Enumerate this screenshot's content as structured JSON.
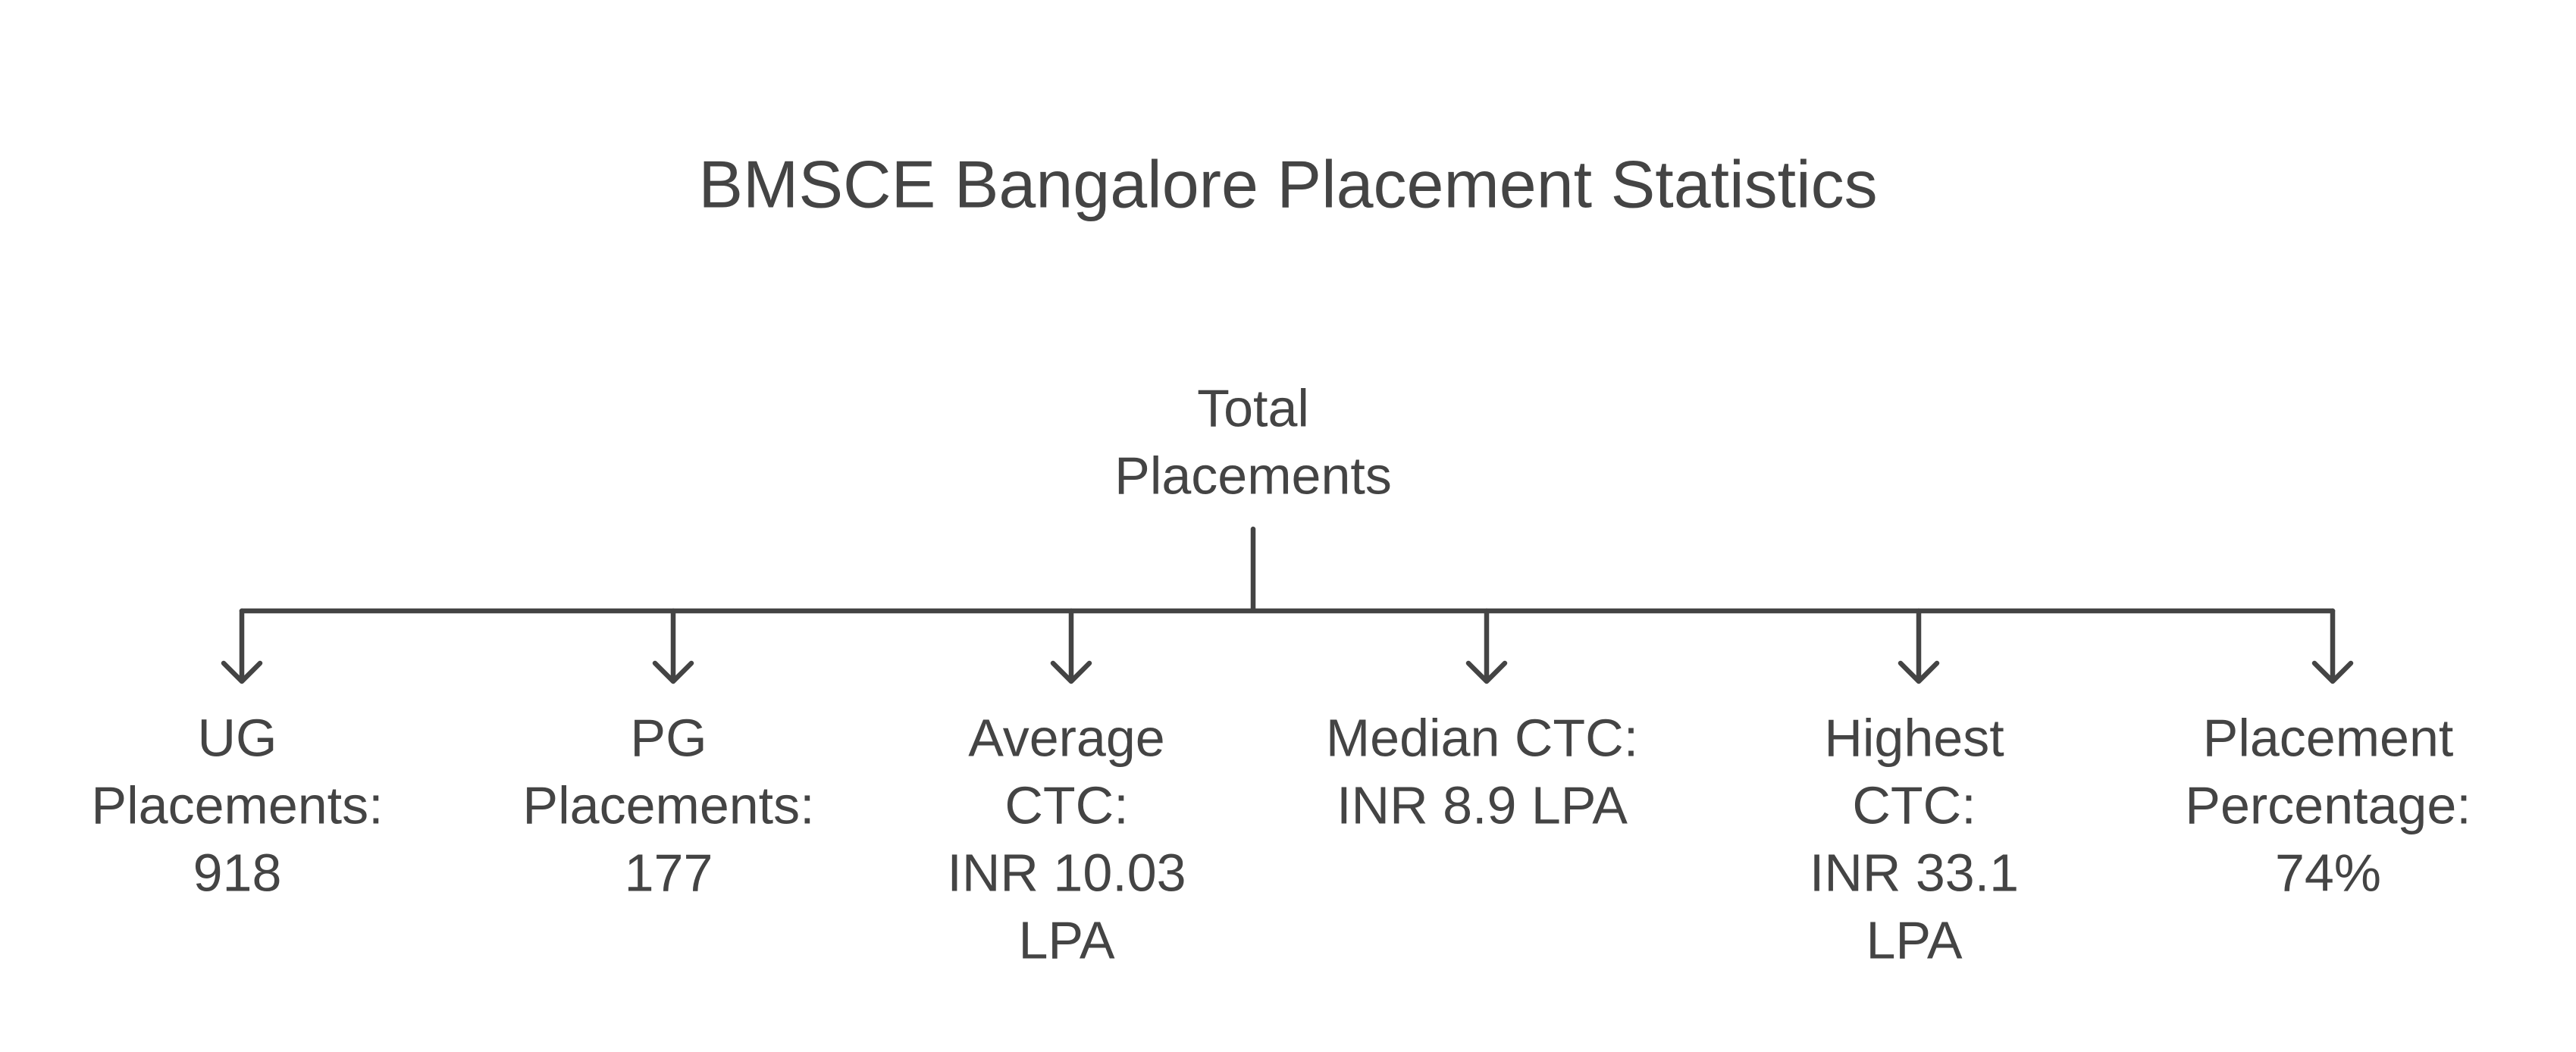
{
  "title": "BMSCE Bangalore Placement Statistics",
  "root": {
    "lines": [
      "Total",
      "Placements"
    ]
  },
  "nodes": [
    {
      "lines": [
        "UG",
        "Placements:",
        "918"
      ]
    },
    {
      "lines": [
        "PG",
        "Placements:",
        "177"
      ]
    },
    {
      "lines": [
        "Average",
        "CTC:",
        "INR 10.03",
        "LPA"
      ]
    },
    {
      "lines": [
        "Median CTC:",
        "INR 8.9 LPA"
      ]
    },
    {
      "lines": [
        "Highest",
        "CTC:",
        "INR 33.1",
        "LPA"
      ]
    },
    {
      "lines": [
        "Placement",
        "Percentage:",
        "74%"
      ]
    }
  ]
}
